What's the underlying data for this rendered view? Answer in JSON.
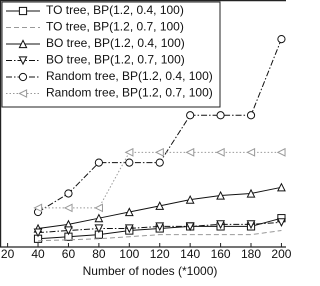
{
  "chart_data": {
    "type": "line",
    "x_label": "Number of nodes (*1000)",
    "x": [
      40,
      60,
      80,
      100,
      120,
      140,
      160,
      180,
      200
    ],
    "xlim": [
      15,
      203
    ],
    "xticks": [
      20,
      40,
      60,
      80,
      100,
      120,
      140,
      160,
      180,
      200
    ],
    "ylim": [
      0,
      12
    ],
    "legend": "upper left",
    "series": [
      {
        "name": "TO tree, BP(1.2, 0.4, 100)",
        "color": "#111111",
        "marker": "square",
        "dash": "solid",
        "values": [
          0.4,
          0.5,
          0.6,
          0.8,
          0.9,
          1.0,
          1.0,
          1.0,
          1.4
        ]
      },
      {
        "name": "TO tree, BP(1.2, 0.7, 100)",
        "color": "#999999",
        "marker": "none",
        "dash": "dashed",
        "values": [
          0.3,
          0.35,
          0.4,
          0.5,
          0.6,
          0.6,
          0.6,
          0.6,
          0.8
        ]
      },
      {
        "name": "BO tree, BP(1.2, 0.4, 100)",
        "color": "#111111",
        "marker": "triangle-up",
        "dash": "solid",
        "values": [
          0.9,
          1.1,
          1.4,
          1.7,
          2.0,
          2.3,
          2.5,
          2.6,
          2.9
        ]
      },
      {
        "name": "BO tree, BP(1.2, 0.7, 100)",
        "color": "#111111",
        "marker": "triangle-down",
        "dash": "dashdot",
        "values": [
          0.7,
          0.8,
          0.9,
          0.9,
          1.0,
          1.0,
          1.1,
          1.1,
          1.2
        ]
      },
      {
        "name": "Random tree, BP(1.2, 0.4, 100)",
        "color": "#111111",
        "marker": "circle",
        "dash": "dashdot",
        "values": [
          1.7,
          2.6,
          4.1,
          4.1,
          4.1,
          6.4,
          6.4,
          6.4,
          10.1
        ]
      },
      {
        "name": "Random tree, BP(1.2, 0.7, 100)",
        "color": "#999999",
        "marker": "triangle-left",
        "dash": "dotted",
        "values": [
          1.9,
          1.9,
          1.9,
          4.6,
          4.6,
          4.6,
          4.6,
          4.6,
          4.6
        ]
      }
    ]
  }
}
